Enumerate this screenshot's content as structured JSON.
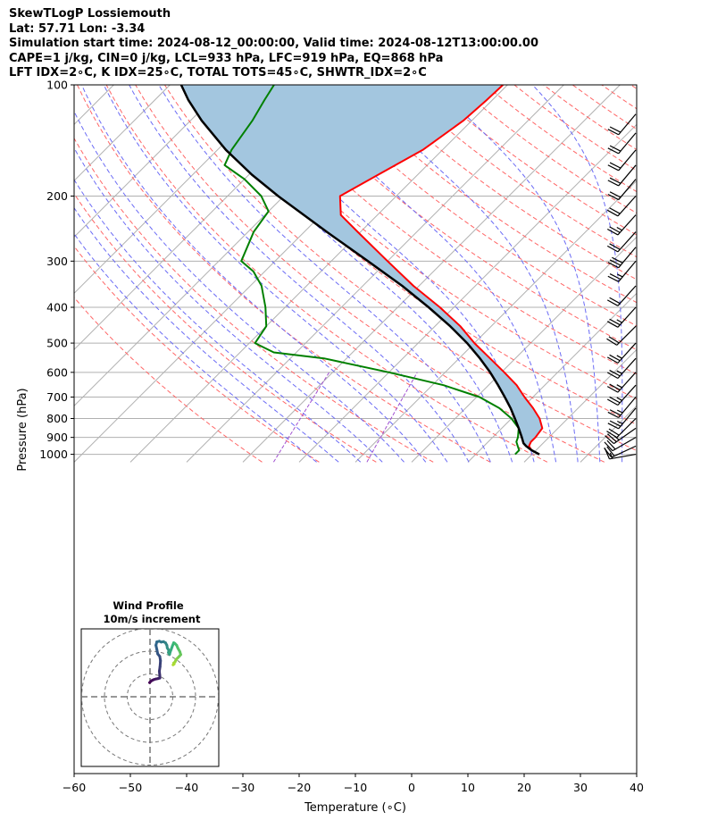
{
  "header": {
    "line1": "SkewTLogP Lossiemouth",
    "line2": "Lat: 57.71   Lon: -3.34",
    "line3": "Simulation start time: 2024-08-12_00:00:00, Valid time: 2024-08-12T13:00:00.00",
    "line4": "CAPE=1 j/kg, CIN=0 j/kg, LCL=933 hPa, LFC=919 hPa, EQ=868 hPa",
    "line5": "LFT IDX=2∘C, K IDX=25∘C, TOTAL TOTS=45∘C, SHWTR_IDX=2∘C"
  },
  "chart_data": [
    {
      "type": "line",
      "title": "",
      "xlabel": "Temperature (∘C)",
      "ylabel": "Pressure (hPa)",
      "xlim": [
        -60,
        40
      ],
      "ylim": [
        1050,
        100
      ],
      "yscale": "log",
      "skew": true,
      "grid": true,
      "x_ticks": [
        "−60",
        "−50",
        "−40",
        "−30",
        "−20",
        "−10",
        "0",
        "10",
        "20",
        "30",
        "40"
      ],
      "y_ticks": [
        "100",
        "200",
        "300",
        "400",
        "500",
        "600",
        "700",
        "800",
        "900",
        "1000"
      ],
      "colors": {
        "temperature": "#ff0000",
        "dewpoint": "#008000",
        "parcel": "#000000",
        "cape_fill": "#a3c6df",
        "dry_adiabat": "#ff6666",
        "moist_adiabat": "#6b6bf5",
        "isotherm": "#b0b0b0",
        "mixing_ratio": "#a050d0"
      },
      "series": [
        {
          "key": "temperature",
          "p": [
            1000,
            975,
            950,
            925,
            900,
            850,
            800,
            750,
            700,
            650,
            600,
            550,
            500,
            450,
            400,
            350,
            300,
            250,
            225,
            200,
            175,
            150,
            125,
            110,
            100
          ],
          "t": [
            21.3,
            19.2,
            18.0,
            17.6,
            17.6,
            17.2,
            15.0,
            12.0,
            8.5,
            5.0,
            0.5,
            -4.5,
            -10.0,
            -15.5,
            -22.5,
            -31.0,
            -40.0,
            -50.5,
            -56.5,
            -60.0,
            -57.0,
            -53.5,
            -51.5,
            -51.0,
            -50.8
          ]
        },
        {
          "key": "dewpoint",
          "p": [
            1000,
            975,
            950,
            925,
            900,
            850,
            800,
            750,
            700,
            650,
            600,
            550,
            530,
            500,
            450,
            400,
            350,
            320,
            300,
            250,
            220,
            200,
            180,
            165,
            150,
            125,
            110,
            100
          ],
          "t": [
            17.0,
            17.0,
            16.0,
            15.0,
            14.5,
            13.0,
            10.0,
            6.0,
            0.5,
            -8.0,
            -20.0,
            -34.0,
            -44.0,
            -49.0,
            -50.0,
            -53.5,
            -58.0,
            -62.0,
            -66.0,
            -69.0,
            -70.0,
            -74.0,
            -80.0,
            -86.0,
            -87.5,
            -89.0,
            -90.5,
            -91.5
          ]
        },
        {
          "key": "parcel",
          "p": [
            1000,
            975,
            950,
            933,
            925,
            900,
            850,
            800,
            750,
            700,
            650,
            600,
            550,
            500,
            450,
            400,
            350,
            300,
            250,
            200,
            175,
            150,
            125,
            110,
            100
          ],
          "t": [
            21.3,
            19.2,
            17.5,
            16.5,
            16.2,
            15.2,
            13.0,
            10.6,
            8.0,
            5.0,
            1.7,
            -2.0,
            -6.3,
            -11.3,
            -17.3,
            -24.5,
            -33.0,
            -43.5,
            -56.0,
            -71.0,
            -79.5,
            -88.5,
            -98.0,
            -104.0,
            -108.0
          ]
        }
      ],
      "wind_barbs": {
        "p": [
          1000,
          950,
          900,
          850,
          800,
          750,
          700,
          650,
          600,
          550,
          500,
          450,
          400,
          350,
          300,
          275,
          250,
          225,
          200,
          180,
          165,
          150,
          135,
          120
        ],
        "speed_kt": [
          15,
          20,
          20,
          25,
          20,
          25,
          25,
          25,
          25,
          25,
          25,
          20,
          25,
          20,
          25,
          30,
          20,
          25,
          20,
          20,
          20,
          20,
          20,
          20
        ],
        "dir_deg": [
          260,
          245,
          240,
          235,
          225,
          220,
          220,
          222,
          222,
          222,
          222,
          225,
          222,
          222,
          220,
          220,
          222,
          222,
          222,
          220,
          220,
          220,
          220,
          220
        ]
      }
    },
    {
      "type": "line",
      "title": "Wind Profile",
      "subtitle": "10m/s increment",
      "rings_ms": [
        10,
        20,
        30
      ],
      "colormap": [
        "#440154",
        "#31688e",
        "#35b779",
        "#b5de2b"
      ],
      "u": [
        -0.2,
        0.6,
        1.6,
        2.6,
        3.6,
        4.3,
        4.3,
        4.1,
        4.4,
        4.6,
        4.3,
        3.4,
        3.0,
        2.6,
        3.0,
        4.1,
        4.9,
        5.9,
        6.8,
        7.4,
        7.6,
        8.3,
        8.1,
        8.6,
        8.8,
        9.3,
        9.8,
        10.4,
        10.9,
        11.7,
        12.3,
        13.1,
        13.5,
        12.9,
        12.2,
        11.7,
        11.3,
        11.0,
        10.4,
        10.6,
        10.1
      ],
      "v": [
        6.2,
        7.0,
        7.5,
        7.8,
        8.0,
        8.2,
        9.3,
        11.2,
        13.2,
        15.8,
        17.7,
        18.8,
        20.8,
        22.6,
        24.1,
        24.4,
        24.0,
        24.2,
        23.7,
        22.6,
        21.4,
        20.3,
        19.4,
        18.6,
        19.5,
        20.8,
        22.2,
        23.7,
        23.4,
        22.6,
        21.2,
        19.8,
        18.5,
        17.8,
        17.1,
        16.6,
        16.0,
        15.3,
        14.8,
        14.4,
        14.0
      ]
    }
  ]
}
